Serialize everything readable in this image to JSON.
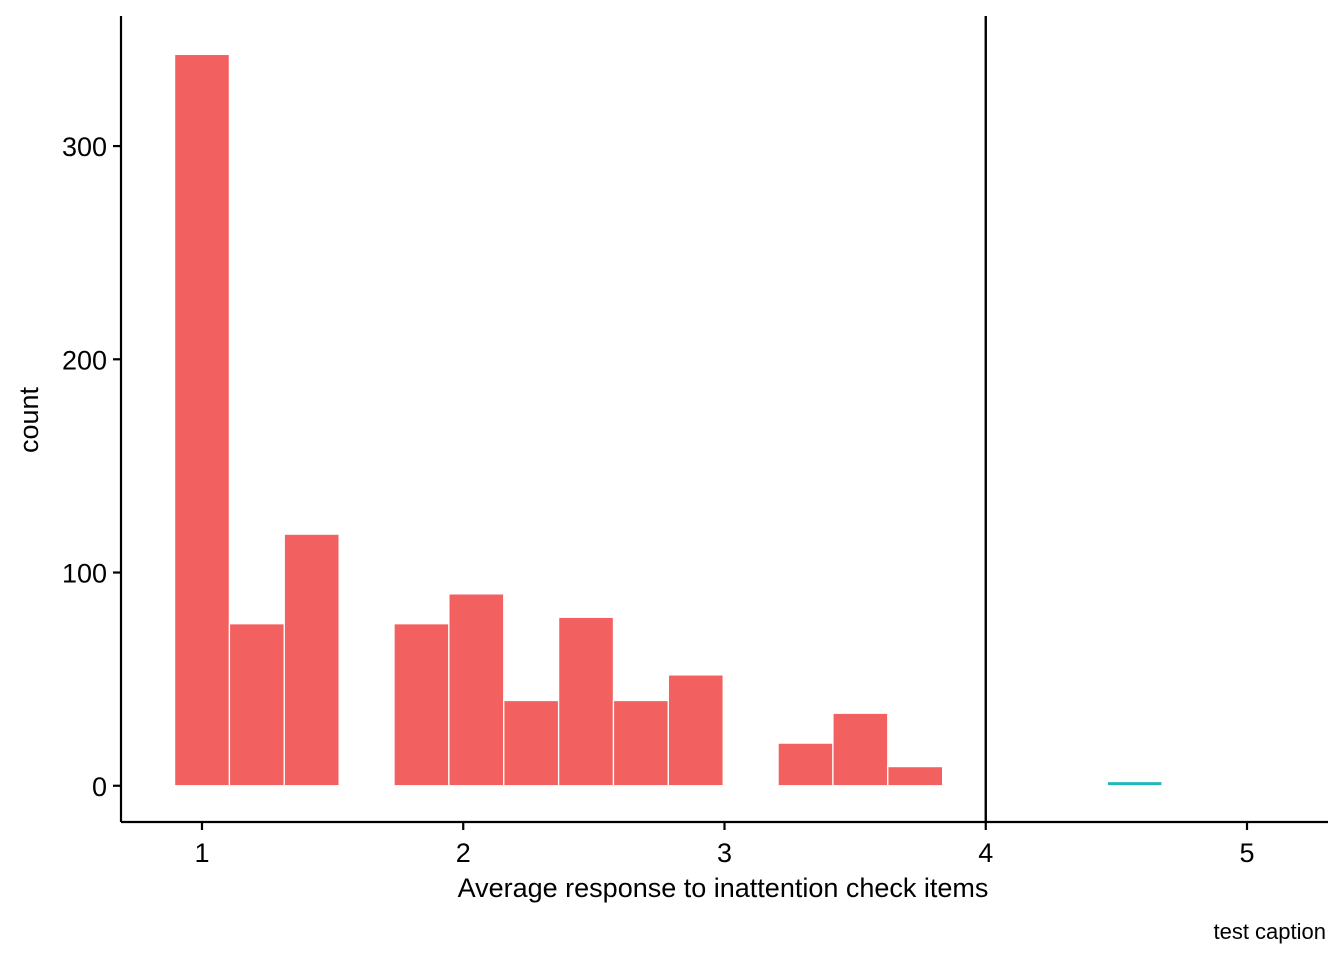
{
  "chart_data": {
    "type": "bar",
    "title": "",
    "xlabel": "Average response to inattention check items",
    "ylabel": "count",
    "caption": "test caption",
    "xlim": [
      0.69,
      5.31
    ],
    "ylim": [
      -17,
      361
    ],
    "x_ticks": [
      {
        "value": 1,
        "label": "1"
      },
      {
        "value": 2,
        "label": "2"
      },
      {
        "value": 3,
        "label": "3"
      },
      {
        "value": 4,
        "label": "4"
      },
      {
        "value": 5,
        "label": "5"
      }
    ],
    "y_ticks": [
      {
        "value": 0,
        "label": "0"
      },
      {
        "value": 100,
        "label": "100"
      },
      {
        "value": 200,
        "label": "200"
      },
      {
        "value": 300,
        "label": "300"
      }
    ],
    "grid": false,
    "bin_width": 0.21,
    "reference_line": {
      "x": 4
    },
    "series": [
      {
        "color": "#F36060",
        "bins": [
          {
            "x": 1.0,
            "count": 343
          },
          {
            "x": 1.21,
            "count": 76
          },
          {
            "x": 1.42,
            "count": 118
          },
          {
            "x": 1.63,
            "count": 0
          },
          {
            "x": 1.84,
            "count": 76
          },
          {
            "x": 2.05,
            "count": 90
          },
          {
            "x": 2.26,
            "count": 40
          },
          {
            "x": 2.47,
            "count": 79
          },
          {
            "x": 2.68,
            "count": 40
          },
          {
            "x": 2.89,
            "count": 52
          },
          {
            "x": 3.1,
            "count": 0
          },
          {
            "x": 3.31,
            "count": 20
          },
          {
            "x": 3.52,
            "count": 34
          },
          {
            "x": 3.73,
            "count": 9
          }
        ]
      },
      {
        "color": "#1FB8C0",
        "bins": [
          {
            "x": 3.94,
            "count": 0.5
          },
          {
            "x": 4.57,
            "count": 2
          }
        ]
      }
    ]
  }
}
